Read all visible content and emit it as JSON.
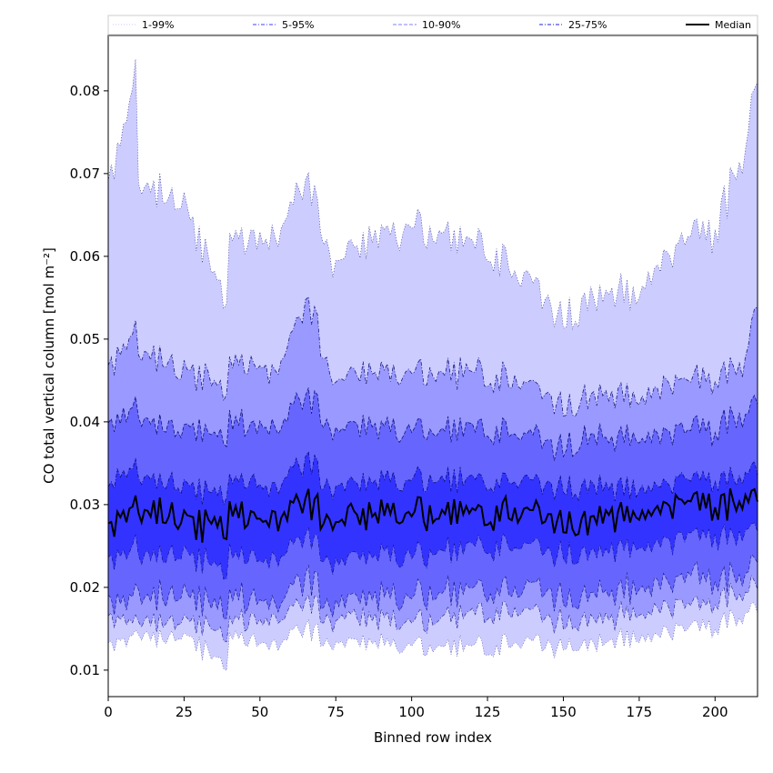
{
  "chart_data": {
    "type": "area",
    "xlabel": "Binned row index",
    "ylabel": "CO total vertical column [mol m⁻²]",
    "xlim": [
      0,
      214
    ],
    "ylim": [
      0.0068,
      0.0868
    ],
    "xticks": [
      0,
      25,
      50,
      75,
      100,
      125,
      150,
      175,
      200
    ],
    "yticks": [
      0.01,
      0.02,
      0.03,
      0.04,
      0.05,
      0.06,
      0.07,
      0.08
    ],
    "ytick_labels": [
      "0.01",
      "0.02",
      "0.03",
      "0.04",
      "0.05",
      "0.06",
      "0.07",
      "0.08"
    ],
    "grid": false,
    "legend_position": "top",
    "legend": [
      {
        "label": "1-99%",
        "style": "dotted",
        "color": "#c8c8ff"
      },
      {
        "label": "5-95%",
        "style": "dashdot",
        "color": "#4040ff"
      },
      {
        "label": "10-90%",
        "style": "dashed",
        "color": "#8080ff"
      },
      {
        "label": "25-75%",
        "style": "dashdot",
        "color": "#2020e0"
      },
      {
        "label": "Median",
        "style": "solid",
        "color": "#000000"
      }
    ],
    "band_colors": [
      "#ccccff",
      "#9999ff",
      "#6666ff",
      "#3333ff"
    ],
    "outline_color": "#000066",
    "profiles": {
      "x": [
        0,
        9,
        10,
        15,
        25,
        39,
        40,
        55,
        66,
        75,
        100,
        125,
        150,
        160,
        175,
        190,
        200,
        205,
        210,
        214
      ],
      "p99": [
        0.068,
        0.082,
        0.068,
        0.068,
        0.066,
        0.0545,
        0.062,
        0.062,
        0.069,
        0.059,
        0.064,
        0.061,
        0.0525,
        0.055,
        0.056,
        0.062,
        0.063,
        0.068,
        0.073,
        0.083
      ],
      "p95": [
        0.046,
        0.051,
        0.048,
        0.048,
        0.046,
        0.044,
        0.047,
        0.046,
        0.054,
        0.045,
        0.046,
        0.046,
        0.042,
        0.043,
        0.043,
        0.045,
        0.045,
        0.046,
        0.048,
        0.055
      ],
      "p90": [
        0.039,
        0.042,
        0.04,
        0.04,
        0.039,
        0.038,
        0.04,
        0.039,
        0.043,
        0.039,
        0.039,
        0.039,
        0.037,
        0.038,
        0.038,
        0.039,
        0.039,
        0.04,
        0.041,
        0.043
      ],
      "p75": [
        0.032,
        0.035,
        0.033,
        0.033,
        0.032,
        0.031,
        0.033,
        0.032,
        0.035,
        0.032,
        0.033,
        0.033,
        0.032,
        0.032,
        0.032,
        0.033,
        0.033,
        0.033,
        0.034,
        0.035
      ],
      "median": [
        0.027,
        0.03,
        0.029,
        0.029,
        0.028,
        0.027,
        0.029,
        0.028,
        0.03,
        0.028,
        0.029,
        0.029,
        0.028,
        0.028,
        0.029,
        0.03,
        0.03,
        0.03,
        0.031,
        0.032
      ],
      "p25": [
        0.023,
        0.025,
        0.024,
        0.024,
        0.024,
        0.022,
        0.024,
        0.023,
        0.026,
        0.023,
        0.024,
        0.025,
        0.024,
        0.024,
        0.025,
        0.026,
        0.026,
        0.026,
        0.027,
        0.028
      ],
      "p10": [
        0.018,
        0.019,
        0.019,
        0.019,
        0.019,
        0.017,
        0.019,
        0.018,
        0.021,
        0.018,
        0.019,
        0.02,
        0.019,
        0.019,
        0.02,
        0.021,
        0.021,
        0.021,
        0.022,
        0.024
      ],
      "p5": [
        0.016,
        0.016,
        0.016,
        0.016,
        0.016,
        0.014,
        0.016,
        0.016,
        0.018,
        0.016,
        0.016,
        0.017,
        0.016,
        0.016,
        0.017,
        0.018,
        0.018,
        0.019,
        0.02,
        0.021
      ],
      "p1": [
        0.013,
        0.014,
        0.014,
        0.014,
        0.014,
        0.0105,
        0.014,
        0.013,
        0.015,
        0.013,
        0.013,
        0.013,
        0.013,
        0.013,
        0.014,
        0.015,
        0.015,
        0.016,
        0.017,
        0.018
      ]
    }
  }
}
